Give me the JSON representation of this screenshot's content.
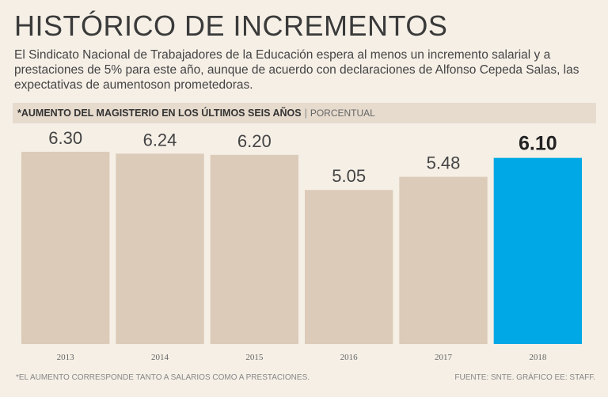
{
  "header": {
    "title": "HISTÓRICO DE INCREMENTOS",
    "subtitle_lines": [
      "El Sindicato Nacional de Trabajadores de la Educación espera al menos un incremento salarial y a",
      "prestaciones de 5% para este año, aunque de acuerdo con declaraciones de Alfonso Cepeda Salas, las",
      "expectativas de aumentoson prometedoras."
    ]
  },
  "chart_header": {
    "label": "*AUMENTO DEL MAGISTERIO EN LOS ÚLTIMOS SEIS AÑOS",
    "separator": "|",
    "unit": "PORCENTUAL"
  },
  "chart_data": {
    "type": "bar",
    "title": "*AUMENTO DEL MAGISTERIO EN LOS ÚLTIMOS SEIS AÑOS",
    "ylabel": "PORCENTUAL",
    "xlabel": "",
    "categories": [
      "2013",
      "2014",
      "2015",
      "2016",
      "2017",
      "2018"
    ],
    "values": [
      6.3,
      6.24,
      6.2,
      5.05,
      5.48,
      6.1
    ],
    "value_labels": [
      "6.30",
      "6.24",
      "6.20",
      "5.05",
      "5.48",
      "6.10"
    ],
    "highlight": "2018",
    "ylim": [
      0,
      6.8
    ],
    "grid": false
  },
  "colors": {
    "bar": "#dccbb8",
    "highlight": "#00a8e6",
    "background": "#f5efe6",
    "header_band": "#e6dbcd"
  },
  "footer": {
    "note": "*El aumento corresponde tanto a salarios como a prestaciones.",
    "source": "Fuente: SNTE. Gráfico EE: Staff."
  }
}
